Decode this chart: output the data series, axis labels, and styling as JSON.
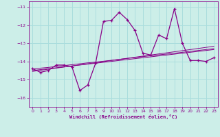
{
  "title": "",
  "xlabel": "Windchill (Refroidissement éolien,°C)",
  "xlim": [
    -0.5,
    23.5
  ],
  "ylim": [
    -16.5,
    -10.7
  ],
  "yticks": [
    -16,
    -15,
    -14,
    -13,
    -12,
    -11
  ],
  "xticks": [
    0,
    1,
    2,
    3,
    4,
    5,
    6,
    7,
    8,
    9,
    10,
    11,
    12,
    13,
    14,
    15,
    16,
    17,
    18,
    19,
    20,
    21,
    22,
    23
  ],
  "background_color": "#cceee8",
  "grid_color": "#aadddd",
  "line_color": "#880088",
  "x_data": [
    0,
    1,
    2,
    3,
    4,
    5,
    6,
    7,
    8,
    9,
    10,
    11,
    12,
    13,
    14,
    15,
    16,
    17,
    18,
    19,
    20,
    21,
    22,
    23
  ],
  "y_main": [
    -14.4,
    -14.6,
    -14.5,
    -14.2,
    -14.2,
    -14.3,
    -15.6,
    -15.3,
    -14.1,
    -11.8,
    -11.75,
    -11.3,
    -11.7,
    -12.3,
    -13.55,
    -13.65,
    -12.55,
    -12.75,
    -11.1,
    -13.0,
    -13.95,
    -13.95,
    -14.0,
    -13.8
  ],
  "y_reg1": [
    -14.5,
    -14.45,
    -14.4,
    -14.35,
    -14.3,
    -14.25,
    -14.2,
    -14.15,
    -14.1,
    -14.05,
    -14.0,
    -13.95,
    -13.9,
    -13.85,
    -13.8,
    -13.75,
    -13.7,
    -13.65,
    -13.6,
    -13.55,
    -13.5,
    -13.45,
    -13.4,
    -13.35
  ],
  "y_reg2": [
    -14.55,
    -14.49,
    -14.43,
    -14.37,
    -14.31,
    -14.25,
    -14.19,
    -14.13,
    -14.07,
    -14.01,
    -13.95,
    -13.89,
    -13.83,
    -13.77,
    -13.71,
    -13.65,
    -13.59,
    -13.53,
    -13.47,
    -13.41,
    -13.35,
    -13.29,
    -13.23,
    -13.17
  ],
  "y_reg3": [
    -14.42,
    -14.37,
    -14.33,
    -14.28,
    -14.23,
    -14.18,
    -14.13,
    -14.08,
    -14.04,
    -13.99,
    -13.94,
    -13.89,
    -13.84,
    -13.79,
    -13.74,
    -13.69,
    -13.64,
    -13.6,
    -13.55,
    -13.5,
    -13.45,
    -13.4,
    -13.35,
    -13.3
  ]
}
